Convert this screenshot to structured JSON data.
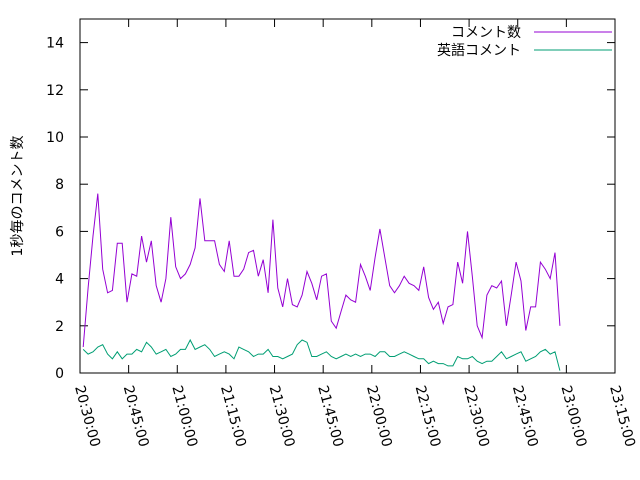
{
  "chart_data": {
    "type": "line",
    "xlabel": "",
    "ylabel": "1秒毎のコメント数",
    "ylim": [
      0,
      15
    ],
    "yticks": [
      "0",
      "2",
      "4",
      "6",
      "8",
      "10",
      "12",
      "14"
    ],
    "xlim": [
      "20:30:00",
      "23:15:00"
    ],
    "xticks": [
      "20:30:00",
      "20:45:00",
      "21:00:00",
      "21:15:00",
      "21:30:00",
      "21:45:00",
      "22:00:00",
      "22:15:00",
      "22:30:00",
      "22:45:00",
      "23:00:00",
      "23:15:00"
    ],
    "grid": false,
    "legend_position": "top-right",
    "x_start": "20:31:00",
    "x_step_min": 1.5,
    "series": [
      {
        "name": "コメント数",
        "color": "#9400d3",
        "values": [
          1.1,
          3.6,
          5.8,
          7.6,
          4.4,
          3.4,
          3.5,
          5.5,
          5.5,
          3.0,
          4.2,
          4.1,
          5.8,
          4.7,
          5.6,
          3.7,
          3.0,
          4.0,
          6.6,
          4.5,
          4.0,
          4.2,
          4.6,
          5.3,
          7.4,
          5.6,
          5.6,
          5.6,
          4.6,
          4.3,
          5.6,
          4.1,
          4.1,
          4.4,
          5.1,
          5.2,
          4.1,
          4.8,
          3.4,
          6.5,
          3.6,
          2.8,
          4.0,
          2.9,
          2.8,
          3.3,
          4.3,
          3.8,
          3.1,
          4.1,
          4.2,
          2.2,
          1.9,
          2.6,
          3.3,
          3.1,
          3.0,
          4.6,
          4.1,
          3.5,
          4.9,
          6.1,
          4.9,
          3.7,
          3.4,
          3.7,
          4.1,
          3.8,
          3.7,
          3.5,
          4.5,
          3.2,
          2.7,
          3.0,
          2.1,
          2.8,
          2.9,
          4.7,
          3.8,
          6.0,
          4.1,
          2.0,
          1.5,
          3.3,
          3.7,
          3.6,
          3.9,
          2.0,
          3.3,
          4.7,
          3.9,
          1.8,
          2.8,
          2.8,
          4.7,
          4.4,
          4.0,
          5.1,
          2.0
        ]
      },
      {
        "name": "英語コメント",
        "color": "#009e73",
        "values": [
          1.0,
          0.8,
          0.9,
          1.1,
          1.2,
          0.8,
          0.6,
          0.9,
          0.6,
          0.8,
          0.8,
          1.0,
          0.9,
          1.3,
          1.1,
          0.8,
          0.9,
          1.0,
          0.7,
          0.8,
          1.0,
          1.0,
          1.4,
          1.0,
          1.1,
          1.2,
          1.0,
          0.7,
          0.8,
          0.9,
          0.8,
          0.6,
          1.1,
          1.0,
          0.9,
          0.7,
          0.8,
          0.8,
          1.0,
          0.7,
          0.7,
          0.6,
          0.7,
          0.8,
          1.2,
          1.4,
          1.3,
          0.7,
          0.7,
          0.8,
          0.9,
          0.7,
          0.6,
          0.7,
          0.8,
          0.7,
          0.8,
          0.7,
          0.8,
          0.8,
          0.7,
          0.9,
          0.9,
          0.7,
          0.7,
          0.8,
          0.9,
          0.8,
          0.7,
          0.6,
          0.6,
          0.4,
          0.5,
          0.4,
          0.4,
          0.3,
          0.3,
          0.7,
          0.6,
          0.6,
          0.7,
          0.5,
          0.4,
          0.5,
          0.5,
          0.7,
          0.9,
          0.6,
          0.7,
          0.8,
          0.9,
          0.5,
          0.6,
          0.7,
          0.9,
          1.0,
          0.8,
          0.9,
          0.1
        ]
      }
    ]
  }
}
